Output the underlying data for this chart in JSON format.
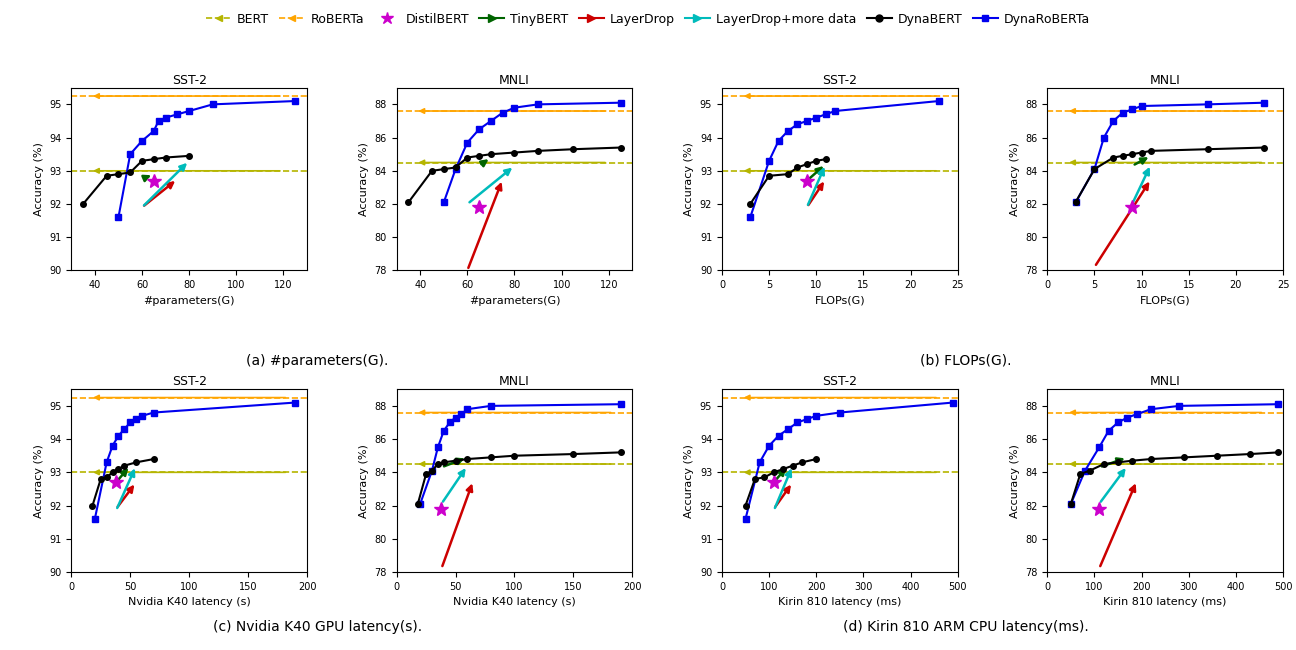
{
  "legend_entries": [
    {
      "label": "BERT",
      "color": "#b5b500",
      "marker": "<",
      "linestyle": "--"
    },
    {
      "label": "RoBERTa",
      "color": "#FFA500",
      "marker": "<",
      "linestyle": "--"
    },
    {
      "label": "DistilBERT",
      "color": "#CC00CC",
      "marker": "*",
      "linestyle": "none"
    },
    {
      "label": "TinyBERT",
      "color": "#006400",
      "marker": ">",
      "linestyle": "-"
    },
    {
      "label": "LayerDrop",
      "color": "#CC0000",
      "marker": ">",
      "linestyle": "-"
    },
    {
      "label": "LayerDrop+more data",
      "color": "#00BBBB",
      "marker": ">",
      "linestyle": "-"
    },
    {
      "label": "DynaBERT",
      "color": "#000000",
      "marker": "o",
      "linestyle": "-"
    },
    {
      "label": "DynaRoBERTa",
      "color": "#0000EE",
      "marker": "s",
      "linestyle": "-"
    }
  ],
  "colors": {
    "BERT": "#b5b500",
    "RoBERTa": "#FFA500",
    "DistilBERT": "#CC00CC",
    "TinyBERT": "#006400",
    "LayerDrop": "#CC0000",
    "LayerDrop+more data": "#00BBBB",
    "DynaBERT": "#000000",
    "DynaRoBERTa": "#0000EE"
  },
  "markers": {
    "BERT": "<",
    "RoBERTa": "<",
    "DistilBERT": "*",
    "TinyBERT": ">",
    "LayerDrop": ">",
    "LayerDrop+more data": ">",
    "DynaBERT": "o",
    "DynaRoBERTa": "s"
  },
  "panels": [
    {
      "title": "SST-2",
      "xlabel": "#parameters(G)",
      "ylabel": "Accuracy (%)",
      "xlim": [
        30,
        130
      ],
      "ylim": [
        90,
        95.5
      ],
      "yticks": [
        90,
        91,
        92,
        93,
        94,
        95
      ],
      "xticks": [
        40,
        60,
        80,
        100,
        120
      ],
      "bert_hline": 93.0,
      "roberta_hline": 95.25,
      "series": {
        "DynaRoBERTa": {
          "x": [
            50,
            55,
            60,
            65,
            67,
            70,
            75,
            80,
            90,
            125
          ],
          "y": [
            91.6,
            93.5,
            93.9,
            94.2,
            94.5,
            94.6,
            94.7,
            94.8,
            95.0,
            95.1
          ]
        },
        "DynaBERT": {
          "x": [
            35,
            45,
            50,
            55,
            60,
            65,
            70,
            80
          ],
          "y": [
            92.0,
            92.85,
            92.9,
            92.95,
            93.3,
            93.35,
            93.4,
            93.45
          ]
        },
        "TinyBERT": {
          "x": [
            60,
            65
          ],
          "y": [
            92.75,
            92.9
          ]
        },
        "LayerDrop": {
          "x": [
            60,
            75
          ],
          "y": [
            91.9,
            92.75
          ]
        },
        "LayerDrop+more data": {
          "x": [
            60,
            80
          ],
          "y": [
            91.9,
            93.3
          ]
        },
        "DistilBERT": {
          "x": [
            65
          ],
          "y": [
            92.7
          ]
        }
      }
    },
    {
      "title": "MNLI",
      "xlabel": "#parameters(G)",
      "ylabel": "Accuracy (%)",
      "xlim": [
        30,
        130
      ],
      "ylim": [
        78,
        89
      ],
      "yticks": [
        78,
        80,
        82,
        84,
        86,
        88
      ],
      "xticks": [
        40,
        60,
        80,
        100,
        120
      ],
      "bert_hline": 84.5,
      "roberta_hline": 87.6,
      "series": {
        "DynaRoBERTa": {
          "x": [
            50,
            55,
            60,
            65,
            70,
            75,
            80,
            90,
            125
          ],
          "y": [
            82.1,
            84.1,
            85.7,
            86.5,
            87.0,
            87.5,
            87.8,
            88.0,
            88.1
          ]
        },
        "DynaBERT": {
          "x": [
            35,
            45,
            50,
            55,
            60,
            65,
            70,
            80,
            90,
            105,
            125
          ],
          "y": [
            82.1,
            84.0,
            84.1,
            84.2,
            84.8,
            84.9,
            85.0,
            85.1,
            85.2,
            85.3,
            85.4
          ]
        },
        "TinyBERT": {
          "x": [
            65,
            70
          ],
          "y": [
            84.3,
            84.8
          ]
        },
        "LayerDrop": {
          "x": [
            60,
            75
          ],
          "y": [
            78.0,
            83.5
          ]
        },
        "LayerDrop+more data": {
          "x": [
            60,
            80
          ],
          "y": [
            82.0,
            84.3
          ]
        },
        "DistilBERT": {
          "x": [
            65
          ],
          "y": [
            81.8
          ]
        }
      }
    },
    {
      "title": "SST-2",
      "xlabel": "FLOPs(G)",
      "ylabel": "Accuracy (%)",
      "xlim": [
        0,
        25
      ],
      "ylim": [
        90,
        95.5
      ],
      "yticks": [
        90,
        91,
        92,
        93,
        94,
        95
      ],
      "xticks": [
        0,
        5,
        10,
        15,
        20,
        25
      ],
      "bert_hline": 93.0,
      "roberta_hline": 95.25,
      "series": {
        "DynaRoBERTa": {
          "x": [
            3,
            5,
            6,
            7,
            8,
            9,
            10,
            11,
            12,
            23
          ],
          "y": [
            91.6,
            93.3,
            93.9,
            94.2,
            94.4,
            94.5,
            94.6,
            94.7,
            94.8,
            95.1
          ]
        },
        "DynaBERT": {
          "x": [
            3,
            5,
            7,
            8,
            9,
            10,
            11
          ],
          "y": [
            92.0,
            92.85,
            92.9,
            93.1,
            93.2,
            93.3,
            93.35
          ]
        },
        "TinyBERT": {
          "x": [
            9,
            11
          ],
          "y": [
            92.7,
            93.2
          ]
        },
        "LayerDrop": {
          "x": [
            9,
            11
          ],
          "y": [
            91.9,
            92.75
          ]
        },
        "LayerDrop+more data": {
          "x": [
            9,
            11
          ],
          "y": [
            91.9,
            93.2
          ]
        },
        "DistilBERT": {
          "x": [
            9
          ],
          "y": [
            92.7
          ]
        }
      }
    },
    {
      "title": "MNLI",
      "xlabel": "FLOPs(G)",
      "ylabel": "Accuracy (%)",
      "xlim": [
        0,
        25
      ],
      "ylim": [
        78,
        89
      ],
      "yticks": [
        78,
        80,
        82,
        84,
        86,
        88
      ],
      "xticks": [
        0,
        5,
        10,
        15,
        20,
        25
      ],
      "bert_hline": 84.5,
      "roberta_hline": 87.6,
      "series": {
        "DynaRoBERTa": {
          "x": [
            3,
            5,
            6,
            7,
            8,
            9,
            10,
            17,
            23
          ],
          "y": [
            82.1,
            84.1,
            86.0,
            87.0,
            87.5,
            87.7,
            87.9,
            88.0,
            88.1
          ]
        },
        "DynaBERT": {
          "x": [
            3,
            5,
            7,
            8,
            9,
            10,
            11,
            17,
            23
          ],
          "y": [
            82.1,
            84.1,
            84.8,
            84.9,
            85.0,
            85.1,
            85.2,
            85.3,
            85.4
          ]
        },
        "TinyBERT": {
          "x": [
            9,
            11
          ],
          "y": [
            84.3,
            84.9
          ]
        },
        "LayerDrop": {
          "x": [
            5,
            11
          ],
          "y": [
            78.2,
            83.5
          ]
        },
        "LayerDrop+more data": {
          "x": [
            9,
            11
          ],
          "y": [
            82.0,
            84.4
          ]
        },
        "DistilBERT": {
          "x": [
            9
          ],
          "y": [
            81.8
          ]
        }
      }
    },
    {
      "title": "SST-2",
      "xlabel": "Nvidia K40 latency (s)",
      "ylabel": "Accuracy (%)",
      "xlim": [
        0,
        200
      ],
      "ylim": [
        90,
        95.5
      ],
      "yticks": [
        90,
        91,
        92,
        93,
        94,
        95
      ],
      "xticks": [
        0,
        50,
        100,
        150,
        200
      ],
      "bert_hline": 93.0,
      "roberta_hline": 95.25,
      "series": {
        "DynaRoBERTa": {
          "x": [
            20,
            30,
            35,
            40,
            45,
            50,
            55,
            60,
            70,
            190
          ],
          "y": [
            91.6,
            93.3,
            93.8,
            94.1,
            94.3,
            94.5,
            94.6,
            94.7,
            94.8,
            95.1
          ]
        },
        "DynaBERT": {
          "x": [
            18,
            25,
            30,
            35,
            40,
            45,
            55,
            70
          ],
          "y": [
            92.0,
            92.8,
            92.85,
            93.0,
            93.1,
            93.2,
            93.3,
            93.4
          ]
        },
        "TinyBERT": {
          "x": [
            38,
            50
          ],
          "y": [
            92.7,
            93.2
          ]
        },
        "LayerDrop": {
          "x": [
            38,
            55
          ],
          "y": [
            91.9,
            92.7
          ]
        },
        "LayerDrop+more data": {
          "x": [
            38,
            55
          ],
          "y": [
            91.85,
            93.2
          ]
        },
        "DistilBERT": {
          "x": [
            38
          ],
          "y": [
            92.7
          ]
        }
      }
    },
    {
      "title": "MNLI",
      "xlabel": "Nvidia K40 latency (s)",
      "ylabel": "Accuracy (%)",
      "xlim": [
        0,
        200
      ],
      "ylim": [
        78,
        89
      ],
      "yticks": [
        78,
        80,
        82,
        84,
        86,
        88
      ],
      "xticks": [
        0,
        50,
        100,
        150,
        200
      ],
      "bert_hline": 84.5,
      "roberta_hline": 87.6,
      "series": {
        "DynaRoBERTa": {
          "x": [
            20,
            30,
            35,
            40,
            45,
            50,
            55,
            60,
            80,
            190
          ],
          "y": [
            82.1,
            84.1,
            85.5,
            86.5,
            87.0,
            87.3,
            87.5,
            87.8,
            88.0,
            88.1
          ]
        },
        "DynaBERT": {
          "x": [
            18,
            25,
            30,
            35,
            40,
            50,
            60,
            80,
            100,
            150,
            190
          ],
          "y": [
            82.1,
            83.9,
            84.1,
            84.5,
            84.6,
            84.7,
            84.8,
            84.9,
            85.0,
            85.1,
            85.2
          ]
        },
        "TinyBERT": {
          "x": [
            38,
            60
          ],
          "y": [
            84.3,
            84.9
          ]
        },
        "LayerDrop": {
          "x": [
            38,
            65
          ],
          "y": [
            78.2,
            83.5
          ]
        },
        "LayerDrop+more data": {
          "x": [
            38,
            60
          ],
          "y": [
            82.1,
            84.4
          ]
        },
        "DistilBERT": {
          "x": [
            38
          ],
          "y": [
            81.8
          ]
        }
      }
    },
    {
      "title": "SST-2",
      "xlabel": "Kirin 810 latency (ms)",
      "ylabel": "Accuracy (%)",
      "xlim": [
        0,
        500
      ],
      "ylim": [
        90,
        95.5
      ],
      "yticks": [
        90,
        91,
        92,
        93,
        94,
        95
      ],
      "xticks": [
        0,
        100,
        200,
        300,
        400,
        500
      ],
      "bert_hline": 93.0,
      "roberta_hline": 95.25,
      "series": {
        "DynaRoBERTa": {
          "x": [
            50,
            80,
            100,
            120,
            140,
            160,
            180,
            200,
            250,
            490
          ],
          "y": [
            91.6,
            93.3,
            93.8,
            94.1,
            94.3,
            94.5,
            94.6,
            94.7,
            94.8,
            95.1
          ]
        },
        "DynaBERT": {
          "x": [
            50,
            70,
            90,
            110,
            130,
            150,
            170,
            200
          ],
          "y": [
            92.0,
            92.8,
            92.85,
            93.0,
            93.1,
            93.2,
            93.3,
            93.4
          ]
        },
        "TinyBERT": {
          "x": [
            110,
            140
          ],
          "y": [
            92.7,
            93.2
          ]
        },
        "LayerDrop": {
          "x": [
            110,
            150
          ],
          "y": [
            91.9,
            92.7
          ]
        },
        "LayerDrop+more data": {
          "x": [
            110,
            150
          ],
          "y": [
            91.85,
            93.2
          ]
        },
        "DistilBERT": {
          "x": [
            110
          ],
          "y": [
            92.7
          ]
        }
      }
    },
    {
      "title": "MNLI",
      "xlabel": "Kirin 810 latency (ms)",
      "ylabel": "Accuracy (%)",
      "xlim": [
        0,
        500
      ],
      "ylim": [
        78,
        89
      ],
      "yticks": [
        78,
        80,
        82,
        84,
        86,
        88
      ],
      "xticks": [
        0,
        100,
        200,
        300,
        400,
        500
      ],
      "bert_hline": 84.5,
      "roberta_hline": 87.6,
      "series": {
        "DynaRoBERTa": {
          "x": [
            50,
            80,
            110,
            130,
            150,
            170,
            190,
            220,
            280,
            490
          ],
          "y": [
            82.1,
            84.1,
            85.5,
            86.5,
            87.0,
            87.3,
            87.5,
            87.8,
            88.0,
            88.1
          ]
        },
        "DynaBERT": {
          "x": [
            50,
            70,
            90,
            120,
            150,
            180,
            220,
            290,
            360,
            430,
            490
          ],
          "y": [
            82.1,
            83.9,
            84.1,
            84.5,
            84.6,
            84.7,
            84.8,
            84.9,
            85.0,
            85.1,
            85.2
          ]
        },
        "TinyBERT": {
          "x": [
            110,
            170
          ],
          "y": [
            84.3,
            84.9
          ]
        },
        "LayerDrop": {
          "x": [
            110,
            190
          ],
          "y": [
            78.2,
            83.5
          ]
        },
        "LayerDrop+more data": {
          "x": [
            110,
            170
          ],
          "y": [
            82.1,
            84.4
          ]
        },
        "DistilBERT": {
          "x": [
            110
          ],
          "y": [
            81.8
          ]
        }
      }
    }
  ],
  "captions": [
    "(a) #parameters(G).",
    "(b) FLOPs(G).",
    "(c) Nvidia K40 GPU latency(s).",
    "(d) Kirin 810 ARM CPU latency(ms)."
  ]
}
